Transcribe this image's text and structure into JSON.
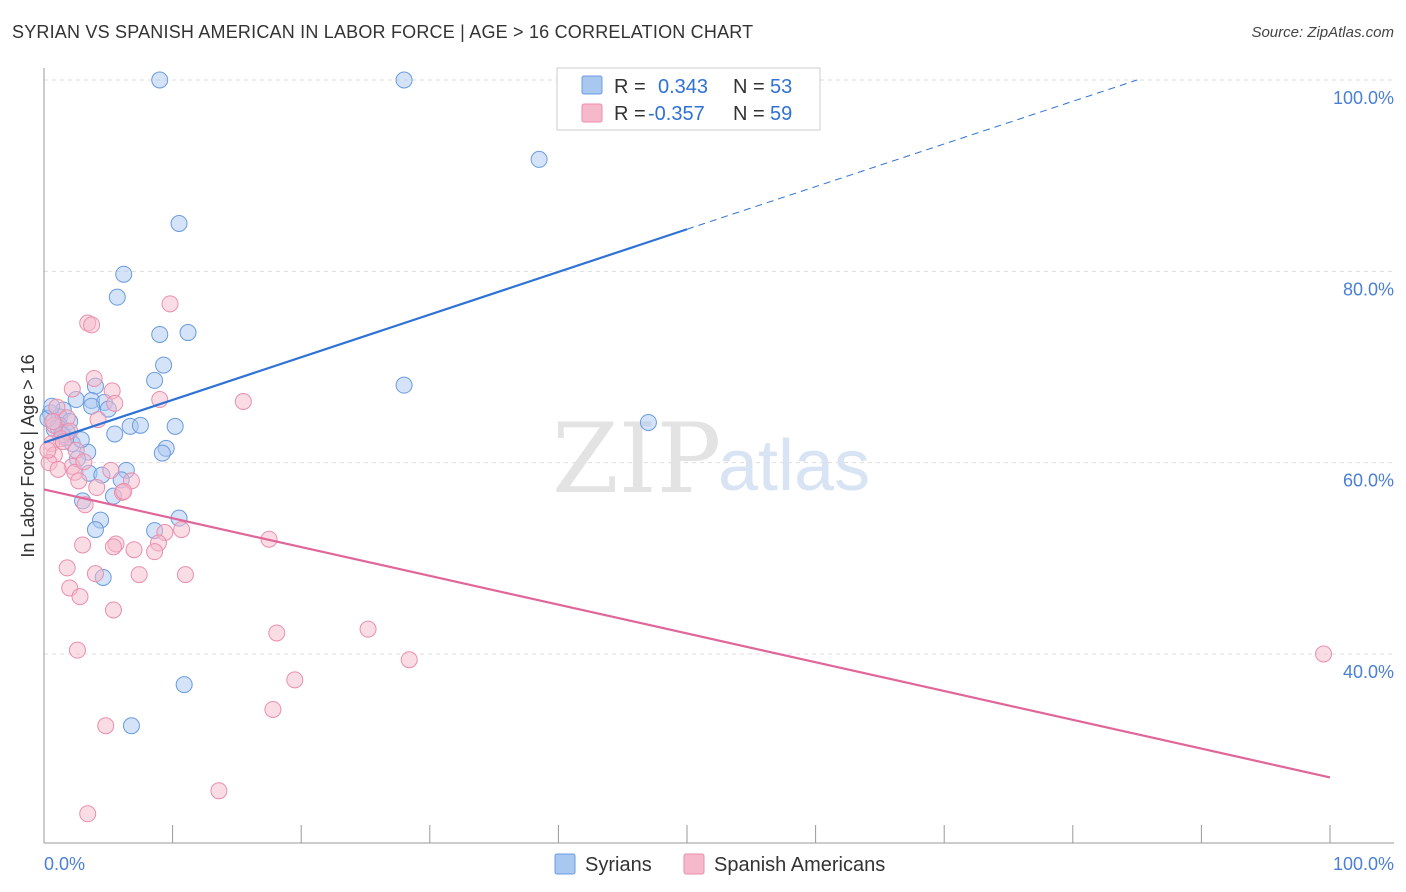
{
  "header": {
    "title": "SYRIAN VS SPANISH AMERICAN IN LABOR FORCE | AGE > 16 CORRELATION CHART",
    "source": "Source: ZipAtlas.com"
  },
  "watermark": {
    "zip": "ZIP",
    "atlas": "atlas"
  },
  "colors": {
    "syrians_fill": "#a9c8f0",
    "syrians_stroke": "#6a9be0",
    "syrians_line": "#2f72d6",
    "spanish_fill": "#f6b9cc",
    "spanish_stroke": "#ea8fad",
    "spanish_line": "#e0669a",
    "tick_text": "#4a7fd4",
    "grid": "#dddddd"
  },
  "legend_top": {
    "rows": [
      {
        "r_label": "R =",
        "r_value": "0.343",
        "n_label": "N =",
        "n_value": "53",
        "series": "syrians"
      },
      {
        "r_label": "R =",
        "r_value": "-0.357",
        "n_label": "N =",
        "n_value": "59",
        "series": "spanish"
      }
    ]
  },
  "legend_bottom": {
    "items": [
      "Syrians",
      "Spanish Americans"
    ]
  },
  "chart_data": {
    "type": "scatter",
    "title": "SYRIAN VS SPANISH AMERICAN IN LABOR FORCE | AGE > 16 CORRELATION CHART",
    "xlabel": "",
    "ylabel": "In Labor Force | Age > 16",
    "xlim": [
      0,
      100
    ],
    "ylim": [
      20,
      102
    ],
    "x_tick_labels": [
      "0.0%",
      "100.0%"
    ],
    "y_ticks": [
      40,
      60,
      80,
      100
    ],
    "y_tick_labels": [
      "40.0%",
      "60.0%",
      "80.0%",
      "100.0%"
    ],
    "grid": true,
    "series": [
      {
        "name": "Syrians",
        "R": 0.343,
        "N": 53,
        "trend": {
          "x0": 0,
          "y0": 62.1,
          "x1": 50,
          "y1": 84.4,
          "dashed_to_x": 85,
          "dashed_to_y": 100
        },
        "points": [
          [
            9,
            100
          ],
          [
            28,
            100
          ],
          [
            38.5,
            91.7
          ],
          [
            10.5,
            85
          ],
          [
            6.2,
            79.7
          ],
          [
            5.7,
            77.3
          ],
          [
            9,
            73.4
          ],
          [
            11.2,
            73.6
          ],
          [
            9.3,
            70.2
          ],
          [
            8.6,
            68.6
          ],
          [
            28,
            68.1
          ],
          [
            4,
            68
          ],
          [
            2.5,
            66.6
          ],
          [
            3.7,
            66.5
          ],
          [
            4.7,
            66.3
          ],
          [
            3.7,
            65.9
          ],
          [
            5,
            65.6
          ],
          [
            1.5,
            65.5
          ],
          [
            0.5,
            65.2
          ],
          [
            1.2,
            64.8
          ],
          [
            2,
            64.3
          ],
          [
            1.2,
            63.9
          ],
          [
            0.8,
            63.5
          ],
          [
            10.2,
            63.8
          ],
          [
            6.7,
            63.8
          ],
          [
            7.5,
            63.9
          ],
          [
            5.5,
            63
          ],
          [
            1.7,
            62.6
          ],
          [
            2.2,
            62
          ],
          [
            9.5,
            61.5
          ],
          [
            3.4,
            61.1
          ],
          [
            9.2,
            61
          ],
          [
            2.6,
            60.4
          ],
          [
            47,
            64.2
          ],
          [
            6.4,
            59.2
          ],
          [
            3.5,
            58.9
          ],
          [
            4.5,
            58.7
          ],
          [
            6,
            58.2
          ],
          [
            5.4,
            56.5
          ],
          [
            3,
            56
          ],
          [
            4.4,
            54
          ],
          [
            10.5,
            54.2
          ],
          [
            4,
            53
          ],
          [
            8.6,
            52.9
          ],
          [
            4.6,
            48
          ],
          [
            10.9,
            36.8
          ],
          [
            6.8,
            32.5
          ],
          [
            1.1,
            63.7
          ],
          [
            0.3,
            64.6
          ],
          [
            1.8,
            63.2
          ],
          [
            0.6,
            65.9
          ],
          [
            2.9,
            62.4
          ],
          [
            1.4,
            62.9
          ]
        ]
      },
      {
        "name": "Spanish Americans",
        "R": -0.357,
        "N": 59,
        "trend": {
          "x0": 0,
          "y0": 57.2,
          "x1": 100,
          "y1": 27.1
        },
        "points": [
          [
            9.8,
            76.6
          ],
          [
            3.4,
            74.6
          ],
          [
            3.7,
            74.4
          ],
          [
            3.9,
            68.8
          ],
          [
            2.2,
            67.7
          ],
          [
            5.3,
            67.5
          ],
          [
            1,
            65.8
          ],
          [
            5.5,
            66.2
          ],
          [
            9,
            66.6
          ],
          [
            15.5,
            66.4
          ],
          [
            1.8,
            64.7
          ],
          [
            4.2,
            64.5
          ],
          [
            0.8,
            63.9
          ],
          [
            2,
            63.3
          ],
          [
            1.3,
            62.5
          ],
          [
            0.6,
            62
          ],
          [
            2.5,
            61.3
          ],
          [
            0.8,
            60.8
          ],
          [
            0.4,
            60
          ],
          [
            2.2,
            59.6
          ],
          [
            1.1,
            59.3
          ],
          [
            2.4,
            59
          ],
          [
            5.2,
            59.2
          ],
          [
            6.8,
            58.1
          ],
          [
            4.1,
            57.4
          ],
          [
            6.1,
            56.9
          ],
          [
            3.2,
            55.6
          ],
          [
            10.7,
            53
          ],
          [
            9.4,
            52.7
          ],
          [
            8.9,
            51.6
          ],
          [
            17.5,
            52
          ],
          [
            5.6,
            51.5
          ],
          [
            3,
            51.4
          ],
          [
            5.4,
            51.2
          ],
          [
            7,
            50.9
          ],
          [
            8.6,
            50.7
          ],
          [
            1.8,
            49
          ],
          [
            4,
            48.4
          ],
          [
            7.4,
            48.3
          ],
          [
            11,
            48.3
          ],
          [
            2,
            46.9
          ],
          [
            2.8,
            46
          ],
          [
            5.4,
            44.6
          ],
          [
            25.2,
            42.6
          ],
          [
            18.1,
            42.2
          ],
          [
            2.6,
            40.4
          ],
          [
            28.4,
            39.4
          ],
          [
            19.5,
            37.3
          ],
          [
            17.8,
            34.2
          ],
          [
            4.8,
            32.5
          ],
          [
            13.6,
            25.7
          ],
          [
            3.4,
            23.3
          ],
          [
            99.5,
            40
          ],
          [
            0.7,
            64.3
          ],
          [
            1.5,
            62.2
          ],
          [
            0.3,
            61.3
          ],
          [
            3.1,
            60.1
          ],
          [
            2.7,
            58.1
          ],
          [
            6.2,
            57
          ]
        ]
      }
    ]
  }
}
